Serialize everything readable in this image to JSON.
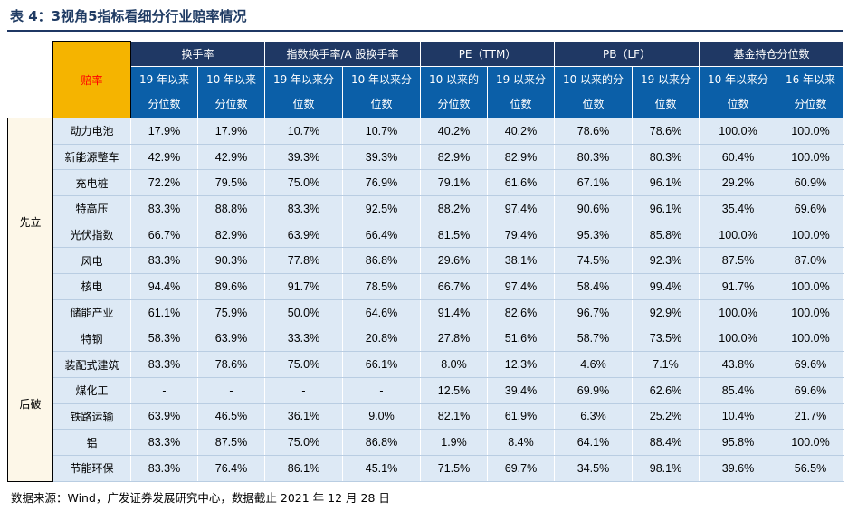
{
  "title": "表 4：3视角5指标看细分行业赔率情况",
  "footer": "数据来源：Wind，广发证券发展研究中心，数据截止 2021 年 12 月 28 日",
  "corner_label": "赔率",
  "group_headers": [
    "换手率",
    "指数换手率/A 股换手率",
    "PE（TTM）",
    "PB（LF）",
    "基金持仓分位数"
  ],
  "sub_headers": [
    [
      "19 年以来",
      "分位数"
    ],
    [
      "10 年以来",
      "分位数"
    ],
    [
      "19 年以来分",
      "位数"
    ],
    [
      "10 年以来分",
      "位数"
    ],
    [
      "10 以来的",
      "分位数"
    ],
    [
      "19 以来分",
      "位数"
    ],
    [
      "10 以来的分",
      "位数"
    ],
    [
      "19 以来分",
      "位数"
    ],
    [
      "10 年以来分",
      "位数"
    ],
    [
      "16 年以来",
      "分位数"
    ]
  ],
  "groups": [
    {
      "label": "先立",
      "rows": [
        {
          "name": "动力电池",
          "values": [
            "17.9%",
            "17.9%",
            "10.7%",
            "10.7%",
            "40.2%",
            "40.2%",
            "78.6%",
            "78.6%",
            "100.0%",
            "100.0%"
          ]
        },
        {
          "name": "新能源整车",
          "values": [
            "42.9%",
            "42.9%",
            "39.3%",
            "39.3%",
            "82.9%",
            "82.9%",
            "80.3%",
            "80.3%",
            "60.4%",
            "100.0%"
          ]
        },
        {
          "name": "充电桩",
          "values": [
            "72.2%",
            "79.5%",
            "75.0%",
            "76.9%",
            "79.1%",
            "61.6%",
            "67.1%",
            "96.1%",
            "29.2%",
            "60.9%"
          ]
        },
        {
          "name": "特高压",
          "values": [
            "83.3%",
            "88.8%",
            "83.3%",
            "92.5%",
            "88.2%",
            "97.4%",
            "90.6%",
            "96.1%",
            "35.4%",
            "69.6%"
          ]
        },
        {
          "name": "光伏指数",
          "values": [
            "66.7%",
            "82.9%",
            "63.9%",
            "66.4%",
            "81.5%",
            "79.4%",
            "95.3%",
            "85.8%",
            "100.0%",
            "100.0%"
          ]
        },
        {
          "name": "风电",
          "values": [
            "83.3%",
            "90.3%",
            "77.8%",
            "86.8%",
            "29.6%",
            "38.1%",
            "74.5%",
            "92.3%",
            "87.5%",
            "87.0%"
          ]
        },
        {
          "name": "核电",
          "values": [
            "94.4%",
            "89.6%",
            "91.7%",
            "78.5%",
            "66.7%",
            "97.4%",
            "58.4%",
            "99.4%",
            "91.7%",
            "100.0%"
          ]
        },
        {
          "name": "储能产业",
          "values": [
            "61.1%",
            "75.9%",
            "50.0%",
            "64.6%",
            "91.4%",
            "82.6%",
            "96.7%",
            "92.9%",
            "100.0%",
            "100.0%"
          ]
        }
      ]
    },
    {
      "label": "后破",
      "rows": [
        {
          "name": "特钢",
          "values": [
            "58.3%",
            "63.9%",
            "33.3%",
            "20.8%",
            "27.8%",
            "51.6%",
            "58.7%",
            "73.5%",
            "100.0%",
            "100.0%"
          ]
        },
        {
          "name": "装配式建筑",
          "values": [
            "83.3%",
            "78.6%",
            "75.0%",
            "66.1%",
            "8.0%",
            "12.3%",
            "4.6%",
            "7.1%",
            "43.8%",
            "69.6%"
          ]
        },
        {
          "name": "煤化工",
          "values": [
            "-",
            "-",
            "-",
            "-",
            "12.5%",
            "39.4%",
            "69.9%",
            "62.6%",
            "85.4%",
            "69.6%"
          ]
        },
        {
          "name": "铁路运输",
          "values": [
            "63.9%",
            "46.5%",
            "36.1%",
            "9.0%",
            "82.1%",
            "61.9%",
            "6.3%",
            "25.2%",
            "10.4%",
            "21.7%"
          ]
        },
        {
          "name": "铝",
          "values": [
            "83.3%",
            "87.5%",
            "75.0%",
            "86.8%",
            "1.9%",
            "8.4%",
            "64.1%",
            "88.4%",
            "95.8%",
            "100.0%"
          ]
        },
        {
          "name": "节能环保",
          "values": [
            "83.3%",
            "76.4%",
            "86.1%",
            "45.1%",
            "71.5%",
            "69.7%",
            "34.5%",
            "98.1%",
            "39.6%",
            "56.5%"
          ]
        }
      ]
    }
  ],
  "colors": {
    "header_dark": "#1f3864",
    "header_blue": "#0b5fa8",
    "corner_fill": "#f5b400",
    "corner_text": "#ff0000",
    "cell_fill": "#dde9f5",
    "group_fill": "#fdf7e8"
  }
}
